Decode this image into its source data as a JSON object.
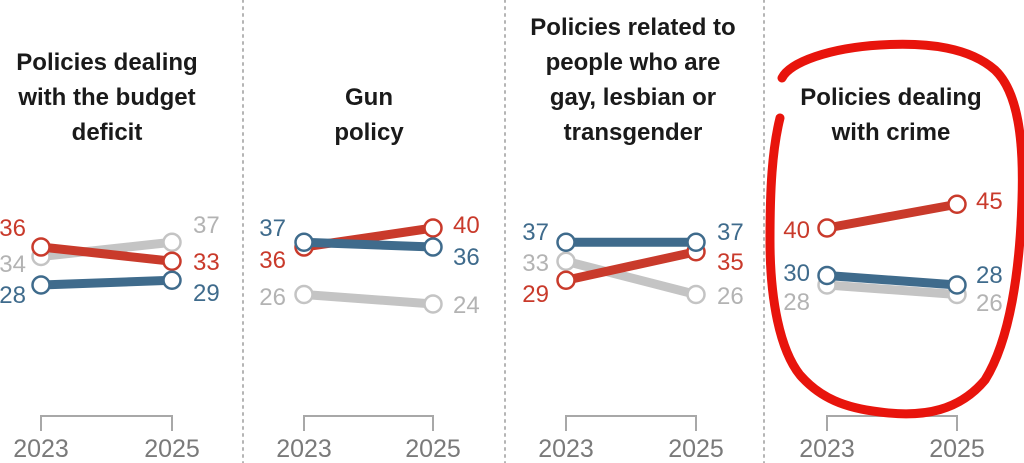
{
  "chart_data": {
    "type": "line",
    "title": "",
    "x": [
      "2023",
      "2025"
    ],
    "colors": {
      "red": "#c93a2b",
      "blue": "#3f6b8c",
      "gray": "#c4c4c4",
      "gray_label": "#b3b3b3",
      "annotation": "#e8140c"
    },
    "panels": [
      {
        "title_lines": [
          "Policies dealing",
          "with the budget",
          "deficit"
        ],
        "series": [
          {
            "name": "red",
            "values": [
              36,
              33
            ],
            "labels": [
              "36",
              "33"
            ]
          },
          {
            "name": "gray",
            "values": [
              34,
              37
            ],
            "labels": [
              "34",
              "37"
            ]
          },
          {
            "name": "blue",
            "values": [
              28,
              29
            ],
            "labels": [
              "28",
              "29"
            ]
          }
        ]
      },
      {
        "title_lines": [
          "Gun",
          "policy"
        ],
        "series": [
          {
            "name": "red",
            "values": [
              36,
              40
            ],
            "labels": [
              "36",
              "40"
            ]
          },
          {
            "name": "blue",
            "values": [
              37,
              36
            ],
            "labels": [
              "37",
              "36"
            ]
          },
          {
            "name": "gray",
            "values": [
              26,
              24
            ],
            "labels": [
              "26",
              "24"
            ]
          }
        ]
      },
      {
        "title_lines": [
          "Policies related to",
          "people who are",
          "gay, lesbian or",
          "transgender"
        ],
        "series": [
          {
            "name": "blue",
            "values": [
              37,
              37
            ],
            "labels": [
              "37",
              "37"
            ]
          },
          {
            "name": "gray",
            "values": [
              33,
              26
            ],
            "labels": [
              "33",
              "26"
            ]
          },
          {
            "name": "red",
            "values": [
              29,
              35
            ],
            "labels": [
              "29",
              "35"
            ]
          }
        ]
      },
      {
        "title_lines": [
          "Policies dealing",
          "with crime"
        ],
        "annotated": true,
        "series": [
          {
            "name": "red",
            "values": [
              40,
              45
            ],
            "labels": [
              "40",
              "45"
            ]
          },
          {
            "name": "blue",
            "values": [
              30,
              28
            ],
            "labels": [
              "30",
              "28"
            ]
          },
          {
            "name": "gray",
            "values": [
              28,
              26
            ],
            "labels": [
              "28",
              "26"
            ]
          }
        ]
      }
    ],
    "xlabel": "",
    "ylabel": "",
    "grid": false,
    "legend": "none"
  }
}
